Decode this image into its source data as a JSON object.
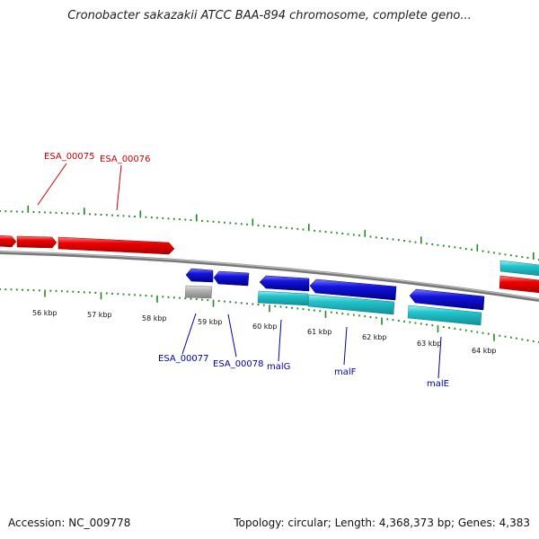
{
  "title": "Cronobacter sakazakii ATCC BAA-894 chromosome, complete geno...",
  "accession_label": "Accession: NC_009778",
  "summary_label": "Topology: circular; Length: 4,368,373 bp; Genes: 4,383",
  "colors": {
    "forward_gene": "#ee0000",
    "reverse_gene": "#1111dd",
    "cds_feature": "#22c4cc",
    "pseudo_feature": "#aaaaaa",
    "backbone": "#888888",
    "tick": "#228822",
    "forward_label": "#cc0000",
    "reverse_label": "#0000aa"
  },
  "scale_labels": [
    "56 kbp",
    "57 kbp",
    "58 kbp",
    "59 kbp",
    "60 kbp",
    "61 kbp",
    "62 kbp",
    "63 kbp",
    "64 kbp"
  ],
  "forward_gene_labels": [
    "ESA_00075",
    "ESA_00076"
  ],
  "reverse_gene_labels": [
    "ESA_00077",
    "ESA_00078",
    "malG",
    "malF",
    "malE"
  ]
}
